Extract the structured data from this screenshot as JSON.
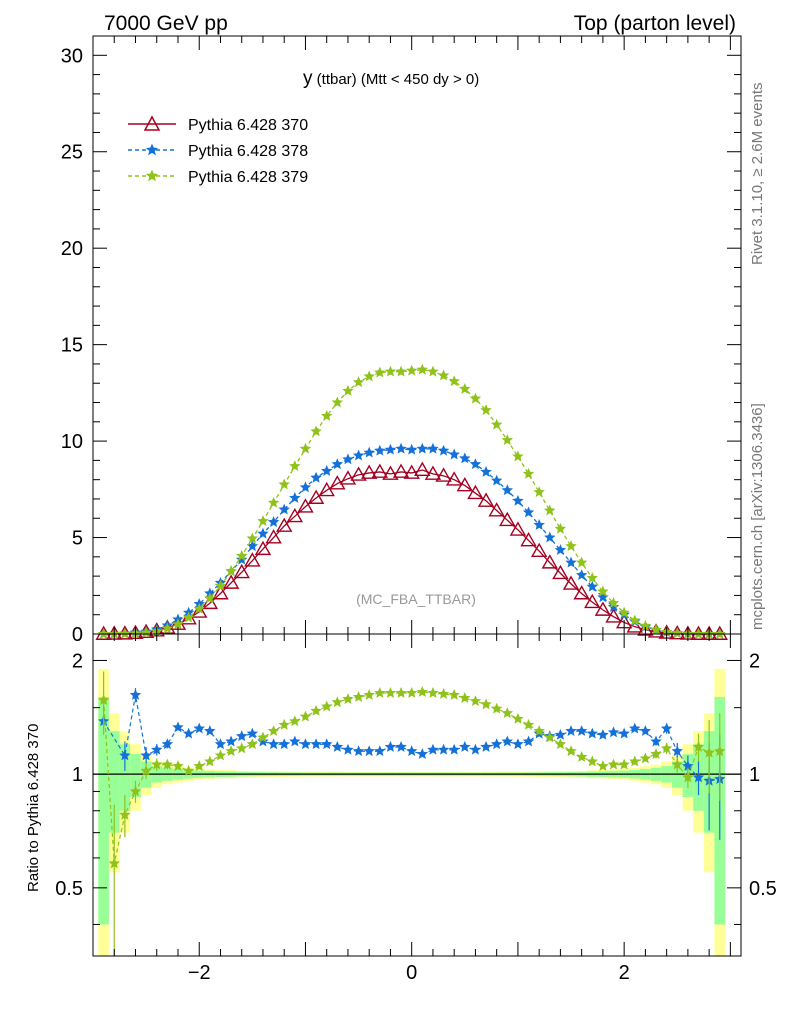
{
  "header": {
    "left": "7000 GeV pp",
    "right": "Top (parton level)"
  },
  "side_labels": {
    "rivet": "Rivet 3.1.10, ≥ 2.6M events",
    "mcplots": "mcplots.cern.ch [arXiv:1306.3436]"
  },
  "plot_title": {
    "main": "y",
    "sub": " (ttbar) (Mtt < 450 dy > 0)"
  },
  "analysis_label": "(MC_FBA_TTBAR)",
  "ratio_ylabel": "Ratio to Pythia 6.428 370",
  "colors": {
    "p370": "#a50021",
    "p378": "#1471d9",
    "p379": "#8fc21a",
    "band_green": "#98ff98",
    "band_yellow": "#ffff98"
  },
  "chart_data": [
    {
      "type": "line",
      "panel": "main",
      "xlim": [
        -3.0,
        3.1
      ],
      "ylim": [
        0,
        31
      ],
      "y_ticks": [
        0,
        5,
        10,
        15,
        20,
        25,
        30
      ],
      "y_tick_labels": [
        "0",
        "5",
        "10",
        "15",
        "20",
        "25",
        "30"
      ],
      "x": [
        -2.9,
        -2.8,
        -2.7,
        -2.6,
        -2.5,
        -2.4,
        -2.3,
        -2.2,
        -2.1,
        -2.0,
        -1.9,
        -1.8,
        -1.7,
        -1.6,
        -1.5,
        -1.4,
        -1.3,
        -1.2,
        -1.1,
        -1.0,
        -0.9,
        -0.8,
        -0.7,
        -0.6,
        -0.5,
        -0.4,
        -0.3,
        -0.2,
        -0.1,
        0.0,
        0.1,
        0.2,
        0.3,
        0.4,
        0.5,
        0.6,
        0.7,
        0.8,
        0.9,
        1.0,
        1.1,
        1.2,
        1.3,
        1.4,
        1.5,
        1.6,
        1.7,
        1.8,
        1.9,
        2.0,
        2.1,
        2.2,
        2.3,
        2.4,
        2.5,
        2.6,
        2.7,
        2.8,
        2.9
      ],
      "series": [
        {
          "name": "Pythia 6.428 370",
          "marker": "open-triangle",
          "line": "solid",
          "values": [
            0.0,
            0.01,
            0.02,
            0.05,
            0.1,
            0.18,
            0.32,
            0.52,
            0.8,
            1.15,
            1.6,
            2.1,
            2.65,
            3.2,
            3.8,
            4.4,
            5.0,
            5.6,
            6.1,
            6.6,
            7.05,
            7.45,
            7.8,
            8.05,
            8.25,
            8.35,
            8.4,
            8.3,
            8.4,
            8.35,
            8.5,
            8.3,
            8.2,
            8.0,
            7.7,
            7.3,
            6.9,
            6.4,
            5.9,
            5.4,
            4.85,
            4.3,
            3.7,
            3.15,
            2.6,
            2.1,
            1.65,
            1.25,
            0.9,
            0.6,
            0.38,
            0.22,
            0.12,
            0.06,
            0.03,
            0.01,
            0.0,
            0.0,
            0.0
          ]
        },
        {
          "name": "Pythia 6.428 378",
          "marker": "star",
          "line": "dashed",
          "values": [
            0.0,
            0.01,
            0.02,
            0.07,
            0.12,
            0.24,
            0.44,
            0.75,
            1.1,
            1.55,
            2.1,
            2.65,
            3.25,
            3.85,
            4.55,
            5.2,
            5.8,
            6.45,
            7.05,
            7.6,
            8.1,
            8.45,
            8.8,
            9.05,
            9.25,
            9.4,
            9.5,
            9.55,
            9.6,
            9.55,
            9.6,
            9.6,
            9.5,
            9.3,
            9.1,
            8.8,
            8.4,
            7.95,
            7.45,
            6.9,
            6.3,
            5.65,
            5.0,
            4.35,
            3.7,
            3.05,
            2.45,
            1.9,
            1.4,
            1.0,
            0.65,
            0.38,
            0.2,
            0.09,
            0.04,
            0.01,
            0.0,
            0.0,
            0.0
          ]
        },
        {
          "name": "Pythia 6.428 379",
          "marker": "star",
          "line": "dashed",
          "values": [
            0.0,
            0.0,
            0.01,
            0.03,
            0.07,
            0.14,
            0.28,
            0.5,
            0.85,
            1.3,
            1.85,
            2.5,
            3.25,
            4.05,
            4.95,
            5.85,
            6.8,
            7.75,
            8.7,
            9.6,
            10.5,
            11.3,
            12.0,
            12.6,
            13.05,
            13.35,
            13.55,
            13.6,
            13.6,
            13.65,
            13.7,
            13.6,
            13.4,
            13.1,
            12.7,
            12.2,
            11.6,
            10.85,
            10.05,
            9.2,
            8.3,
            7.35,
            6.4,
            5.45,
            4.55,
            3.7,
            2.9,
            2.2,
            1.6,
            1.1,
            0.7,
            0.42,
            0.22,
            0.1,
            0.04,
            0.01,
            0.0,
            0.0,
            0.0
          ]
        }
      ]
    },
    {
      "type": "line",
      "panel": "ratio",
      "ylabel": "Ratio to Pythia 6.428 370",
      "xlim": [
        -3.0,
        3.1
      ],
      "ylim": [
        0.33,
        2.35
      ],
      "log_y": true,
      "x_ticks": [
        -2,
        0,
        2
      ],
      "x_tick_labels": [
        "−2",
        "0",
        "2"
      ],
      "y_ticks": [
        0.5,
        1,
        2
      ],
      "y_tick_labels": [
        "0.5",
        "1",
        "2"
      ],
      "x": [
        -2.9,
        -2.8,
        -2.7,
        -2.6,
        -2.5,
        -2.4,
        -2.3,
        -2.2,
        -2.1,
        -2.0,
        -1.9,
        -1.8,
        -1.7,
        -1.6,
        -1.5,
        -1.4,
        -1.3,
        -1.2,
        -1.1,
        -1.0,
        -0.9,
        -0.8,
        -0.7,
        -0.6,
        -0.5,
        -0.4,
        -0.3,
        -0.2,
        -0.1,
        0.0,
        0.1,
        0.2,
        0.3,
        0.4,
        0.5,
        0.6,
        0.7,
        0.8,
        0.9,
        1.0,
        1.1,
        1.2,
        1.3,
        1.4,
        1.5,
        1.6,
        1.7,
        1.8,
        1.9,
        2.0,
        2.1,
        2.2,
        2.3,
        2.4,
        2.5,
        2.6,
        2.7,
        2.8,
        2.9
      ],
      "reference": 1.0,
      "band_yellow_halfwidth": [
        0.9,
        0.45,
        0.3,
        0.2,
        0.12,
        0.08,
        0.06,
        0.05,
        0.04,
        0.035,
        0.03,
        0.025,
        0.025,
        0.02,
        0.02,
        0.02,
        0.018,
        0.018,
        0.016,
        0.016,
        0.015,
        0.015,
        0.015,
        0.014,
        0.014,
        0.014,
        0.014,
        0.014,
        0.014,
        0.014,
        0.014,
        0.014,
        0.014,
        0.014,
        0.014,
        0.014,
        0.015,
        0.015,
        0.015,
        0.016,
        0.016,
        0.018,
        0.018,
        0.02,
        0.02,
        0.02,
        0.025,
        0.025,
        0.03,
        0.035,
        0.04,
        0.05,
        0.06,
        0.08,
        0.12,
        0.2,
        0.3,
        0.45,
        0.9
      ],
      "band_green_halfwidth": [
        0.6,
        0.3,
        0.2,
        0.13,
        0.08,
        0.05,
        0.04,
        0.032,
        0.026,
        0.022,
        0.02,
        0.017,
        0.016,
        0.014,
        0.013,
        0.012,
        0.012,
        0.011,
        0.011,
        0.01,
        0.01,
        0.01,
        0.01,
        0.01,
        0.01,
        0.01,
        0.01,
        0.01,
        0.01,
        0.01,
        0.01,
        0.01,
        0.01,
        0.01,
        0.01,
        0.01,
        0.01,
        0.01,
        0.01,
        0.01,
        0.011,
        0.011,
        0.012,
        0.012,
        0.013,
        0.014,
        0.016,
        0.017,
        0.02,
        0.022,
        0.026,
        0.032,
        0.04,
        0.05,
        0.08,
        0.13,
        0.2,
        0.3,
        0.6
      ],
      "series": [
        {
          "name": "Pythia 6.428 378",
          "values": [
            1.38,
            null,
            1.12,
            1.62,
            1.12,
            1.16,
            1.2,
            1.33,
            1.28,
            1.32,
            1.3,
            1.2,
            1.22,
            1.26,
            1.28,
            1.22,
            1.2,
            1.2,
            1.22,
            1.2,
            1.2,
            1.2,
            1.18,
            1.16,
            1.15,
            1.15,
            1.15,
            1.18,
            1.18,
            1.15,
            1.13,
            1.16,
            1.16,
            1.16,
            1.18,
            1.16,
            1.18,
            1.2,
            1.22,
            1.2,
            1.22,
            1.28,
            1.26,
            1.27,
            1.3,
            1.3,
            1.28,
            1.27,
            1.29,
            1.28,
            1.32,
            1.3,
            1.22,
            1.32,
            1.15,
            1.05,
            0.98,
            0.96,
            0.97
          ],
          "errors": [
            0.05,
            0.05,
            0.1,
            0.07,
            0.06,
            0.04,
            0.03,
            0.02,
            0.02,
            0.02,
            0.01,
            0.01,
            0.01,
            0.01,
            0.01,
            0.01,
            0.01,
            0.01,
            0.01,
            0.01,
            0.01,
            0.01,
            0.01,
            0.01,
            0.01,
            0.01,
            0.01,
            0.01,
            0.01,
            0.01,
            0.01,
            0.01,
            0.01,
            0.01,
            0.01,
            0.01,
            0.01,
            0.01,
            0.01,
            0.01,
            0.01,
            0.01,
            0.01,
            0.01,
            0.01,
            0.01,
            0.01,
            0.01,
            0.01,
            0.02,
            0.02,
            0.02,
            0.03,
            0.04,
            0.06,
            0.07,
            0.1,
            0.25,
            0.3
          ]
        },
        {
          "name": "Pythia 6.428 379",
          "values": [
            1.57,
            0.58,
            0.78,
            0.9,
            1.02,
            1.06,
            1.06,
            1.05,
            1.02,
            1.05,
            1.08,
            1.12,
            1.15,
            1.17,
            1.2,
            1.25,
            1.3,
            1.35,
            1.38,
            1.42,
            1.47,
            1.51,
            1.55,
            1.58,
            1.6,
            1.62,
            1.64,
            1.64,
            1.64,
            1.64,
            1.65,
            1.64,
            1.63,
            1.62,
            1.59,
            1.56,
            1.53,
            1.49,
            1.45,
            1.4,
            1.35,
            1.3,
            1.25,
            1.2,
            1.15,
            1.11,
            1.08,
            1.05,
            1.06,
            1.06,
            1.08,
            1.1,
            1.13,
            1.17,
            1.06,
            0.98,
            1.18,
            1.14,
            1.15
          ],
          "errors": [
            0.3,
            0.25,
            0.1,
            0.06,
            0.05,
            0.04,
            0.03,
            0.02,
            0.02,
            0.02,
            0.01,
            0.01,
            0.01,
            0.01,
            0.01,
            0.01,
            0.01,
            0.01,
            0.01,
            0.01,
            0.01,
            0.01,
            0.01,
            0.01,
            0.01,
            0.01,
            0.01,
            0.01,
            0.01,
            0.01,
            0.01,
            0.01,
            0.01,
            0.01,
            0.01,
            0.01,
            0.01,
            0.01,
            0.01,
            0.01,
            0.01,
            0.01,
            0.01,
            0.01,
            0.01,
            0.01,
            0.01,
            0.01,
            0.01,
            0.02,
            0.02,
            0.02,
            0.03,
            0.04,
            0.05,
            0.06,
            0.1,
            0.25,
            0.3
          ]
        }
      ]
    }
  ]
}
